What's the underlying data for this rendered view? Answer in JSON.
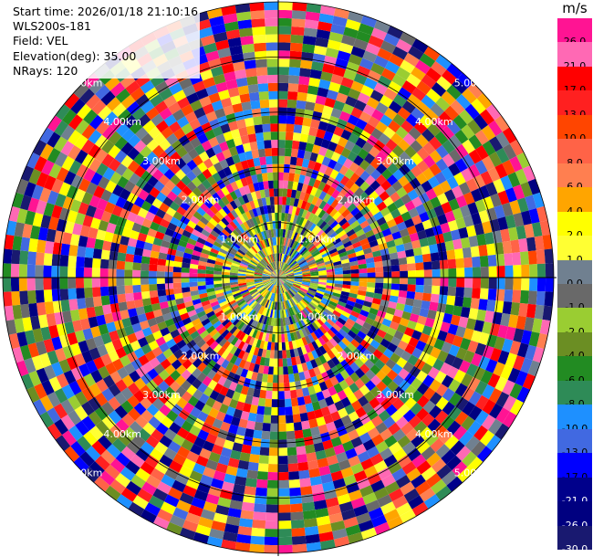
{
  "info": {
    "start_time": "Start time: 2026/01/18 21:10:16",
    "instrument": "WLS200s-181",
    "field": "Field: VEL",
    "elevation": "Elevation(deg): 35.00",
    "nrays": "NRays: 120"
  },
  "colorbar": {
    "unit": "m/s",
    "bins": [
      {
        "label": "26.0",
        "color": "#ff1493"
      },
      {
        "label": "21.0",
        "color": "#ff69b4"
      },
      {
        "label": "17.0",
        "color": "#ff0000"
      },
      {
        "label": "13.0",
        "color": "#ff2020"
      },
      {
        "label": "10.0",
        "color": "#ff4500"
      },
      {
        "label": "8.0",
        "color": "#ff6347"
      },
      {
        "label": "6.0",
        "color": "#ff7f50"
      },
      {
        "label": "4.0",
        "color": "#ffa500"
      },
      {
        "label": "2.0",
        "color": "#ffff00"
      },
      {
        "label": "1.0",
        "color": "#ffff33"
      },
      {
        "label": "0.0",
        "color": "#708090"
      },
      {
        "label": "-1.0",
        "color": "#696969"
      },
      {
        "label": "-2.0",
        "color": "#9acd32"
      },
      {
        "label": "-4.0",
        "color": "#6b8e23"
      },
      {
        "label": "-6.0",
        "color": "#228b22"
      },
      {
        "label": "-8.0",
        "color": "#2e8b57"
      },
      {
        "label": "-10.0",
        "color": "#1e90ff"
      },
      {
        "label": "-13.0",
        "color": "#4169e1"
      },
      {
        "label": "-17.0",
        "color": "#0000ff"
      },
      {
        "label": "-21.0",
        "color": "#00008b"
      },
      {
        "label": "-26.0",
        "color": "#000080"
      },
      {
        "label": "-30.0",
        "color": "#191970"
      }
    ]
  },
  "range_labels": [
    "1.00km",
    "2.00km",
    "3.00km",
    "4.00km",
    "5.00km"
  ],
  "chart_data": {
    "type": "heatmap",
    "projection": "polar-ppi",
    "field": "VEL",
    "units": "m/s",
    "nrays": 120,
    "elevation_deg": 35.0,
    "range_rings_km": [
      1,
      2,
      3,
      4,
      5
    ],
    "max_range_km": 5.0,
    "value_range": [
      -30.0,
      26.0
    ],
    "description_note": "noisy velocity field; center near-zero to positive (yellow/green/gray), outer gates random across full range"
  }
}
